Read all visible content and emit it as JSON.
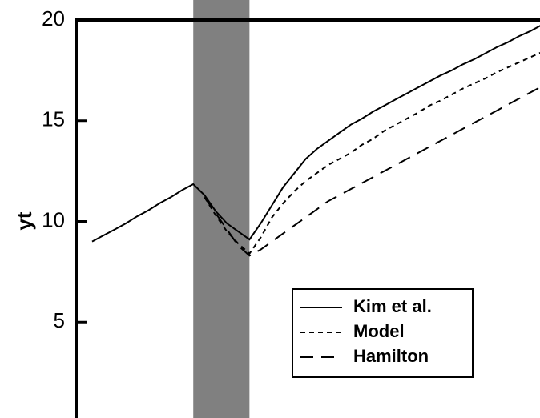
{
  "chart_data": {
    "type": "line",
    "title": "",
    "xlabel": "",
    "ylabel": "yt",
    "xlim": [
      0,
      40
    ],
    "ylim": [
      0,
      20
    ],
    "yticks": [
      5,
      10,
      15,
      20
    ],
    "ytick_labels": [
      "5",
      "10",
      "15",
      "20"
    ],
    "grid": false,
    "legend": "center-right",
    "shaded_region": {
      "x": [
        9,
        14
      ],
      "color": "#808080"
    },
    "series": [
      {
        "name": "Kim et al.",
        "style": "solid",
        "x": [
          0,
          1,
          2,
          3,
          4,
          5,
          6,
          7,
          8,
          9,
          10,
          11,
          12,
          13,
          14,
          15,
          16,
          17,
          18,
          19,
          20,
          21,
          22,
          23,
          24,
          25,
          26,
          27,
          28,
          29,
          30,
          31,
          32,
          33,
          34,
          35,
          36,
          37,
          38,
          39,
          40
        ],
        "values": [
          9.0,
          9.3,
          9.6,
          9.9,
          10.25,
          10.55,
          10.9,
          11.2,
          11.55,
          11.85,
          11.3,
          10.5,
          9.9,
          9.5,
          9.1,
          9.9,
          10.8,
          11.7,
          12.4,
          13.1,
          13.6,
          14.0,
          14.4,
          14.8,
          15.1,
          15.45,
          15.75,
          16.05,
          16.35,
          16.65,
          16.95,
          17.25,
          17.5,
          17.8,
          18.05,
          18.35,
          18.65,
          18.9,
          19.2,
          19.45,
          19.75
        ]
      },
      {
        "name": "Model",
        "style": "dotted",
        "x": [
          10,
          11,
          12,
          13,
          14,
          15,
          16,
          17,
          18,
          19,
          20,
          21,
          22,
          23,
          24,
          25,
          26,
          27,
          28,
          29,
          30,
          31,
          32,
          33,
          34,
          35,
          36,
          37,
          38,
          39,
          40
        ],
        "values": [
          11.2,
          10.3,
          9.5,
          8.9,
          8.4,
          9.2,
          10.2,
          10.9,
          11.5,
          12.0,
          12.4,
          12.8,
          13.1,
          13.4,
          13.8,
          14.1,
          14.5,
          14.8,
          15.1,
          15.4,
          15.75,
          16.0,
          16.3,
          16.6,
          16.85,
          17.1,
          17.4,
          17.65,
          17.9,
          18.15,
          18.4
        ]
      },
      {
        "name": "Hamilton",
        "style": "dashed",
        "x": [
          10,
          11,
          12,
          13,
          14,
          15,
          16,
          17,
          18,
          19,
          20,
          21,
          22,
          23,
          24,
          25,
          26,
          27,
          28,
          29,
          30,
          31,
          32,
          33,
          34,
          35,
          36,
          37,
          38,
          39,
          40
        ],
        "values": [
          11.2,
          10.4,
          9.6,
          8.8,
          8.3,
          8.6,
          9.0,
          9.4,
          9.8,
          10.2,
          10.6,
          11.0,
          11.3,
          11.6,
          11.9,
          12.2,
          12.5,
          12.8,
          13.1,
          13.4,
          13.7,
          14.0,
          14.3,
          14.6,
          14.9,
          15.2,
          15.5,
          15.8,
          16.1,
          16.4,
          16.7
        ]
      }
    ]
  }
}
